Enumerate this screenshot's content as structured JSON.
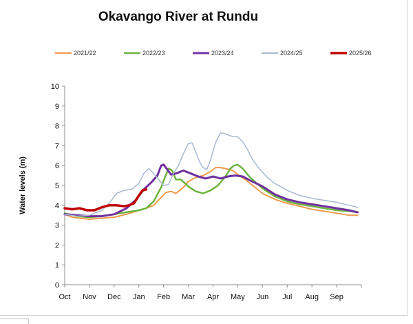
{
  "chart_data": {
    "type": "line",
    "title": "Okavango River at Rundu",
    "xlabel": "",
    "ylabel": "Water levels (m)",
    "ylim": [
      0,
      10
    ],
    "xlim": [
      0,
      12
    ],
    "yticks": [
      0,
      1,
      2,
      3,
      4,
      5,
      6,
      7,
      8,
      9,
      10
    ],
    "x_tick_labels": [
      "Oct",
      "Nov",
      "Dec",
      "Jan",
      "Feb",
      "Mar",
      "Apr",
      "May",
      "Jun",
      "Jul",
      "Aug",
      "Sep"
    ],
    "x_unit": "months since 1 October (tick at start of each month)",
    "grid": false,
    "legend_position": "top",
    "series": [
      {
        "name": "2021/22",
        "color": "#ED9A4C",
        "width": 2,
        "x": [
          0,
          0.3,
          0.6,
          1,
          1.5,
          2,
          2.5,
          3,
          3.3,
          3.6,
          3.9,
          4.1,
          4.3,
          4.5,
          4.8,
          5,
          5.3,
          5.6,
          5.9,
          6.1,
          6.3,
          6.5,
          6.8,
          7,
          7.3,
          7.6,
          8,
          8.5,
          9,
          9.5,
          10,
          10.5,
          11,
          11.5,
          11.85
        ],
        "y": [
          3.55,
          3.4,
          3.35,
          3.3,
          3.35,
          3.4,
          3.55,
          3.75,
          3.85,
          4.0,
          4.4,
          4.65,
          4.7,
          4.6,
          4.9,
          5.2,
          5.4,
          5.5,
          5.7,
          5.9,
          5.9,
          5.85,
          5.75,
          5.55,
          5.3,
          5.0,
          4.6,
          4.3,
          4.1,
          3.95,
          3.8,
          3.7,
          3.6,
          3.5,
          3.5
        ]
      },
      {
        "name": "2022/23",
        "color": "#6DB33F",
        "width": 2.5,
        "x": [
          0,
          0.5,
          1,
          1.5,
          2,
          2.5,
          3,
          3.3,
          3.6,
          3.9,
          4.05,
          4.2,
          4.35,
          4.5,
          4.7,
          5,
          5.3,
          5.6,
          5.9,
          6.2,
          6.5,
          6.7,
          6.85,
          7,
          7.2,
          7.5,
          8,
          8.5,
          9,
          9.5,
          10,
          10.5,
          11,
          11.5,
          11.85
        ],
        "y": [
          3.6,
          3.45,
          3.4,
          3.45,
          3.55,
          3.65,
          3.75,
          3.85,
          4.2,
          4.9,
          5.4,
          5.85,
          5.75,
          5.3,
          5.3,
          4.95,
          4.7,
          4.6,
          4.75,
          5.0,
          5.45,
          5.85,
          6.0,
          6.05,
          5.85,
          5.4,
          4.85,
          4.45,
          4.2,
          4.05,
          3.95,
          3.85,
          3.75,
          3.7,
          3.65
        ]
      },
      {
        "name": "2023/24",
        "color": "#7030A0",
        "width": 3,
        "x": [
          0,
          0.5,
          1,
          1.5,
          2,
          2.5,
          2.9,
          3.2,
          3.5,
          3.75,
          3.9,
          4.0,
          4.15,
          4.3,
          4.5,
          4.8,
          5.1,
          5.4,
          5.7,
          6.0,
          6.3,
          6.6,
          6.9,
          7.2,
          7.5,
          8,
          8.5,
          9,
          9.5,
          10,
          10.5,
          11,
          11.5,
          11.85
        ],
        "y": [
          3.55,
          3.5,
          3.45,
          3.45,
          3.55,
          3.85,
          4.3,
          4.8,
          5.15,
          5.5,
          6.0,
          6.05,
          5.8,
          5.55,
          5.6,
          5.75,
          5.6,
          5.45,
          5.35,
          5.45,
          5.35,
          5.45,
          5.5,
          5.45,
          5.25,
          4.95,
          4.55,
          4.3,
          4.15,
          4.05,
          3.95,
          3.85,
          3.75,
          3.65
        ]
      },
      {
        "name": "2024/25",
        "color": "#A9B8D0",
        "width": 1.5,
        "x": [
          0,
          0.5,
          1,
          1.5,
          1.8,
          2.1,
          2.4,
          2.7,
          3.0,
          3.2,
          3.4,
          3.6,
          3.8,
          4.0,
          4.2,
          4.4,
          4.6,
          4.8,
          5.0,
          5.15,
          5.3,
          5.45,
          5.6,
          5.75,
          5.9,
          6.1,
          6.3,
          6.5,
          6.7,
          6.85,
          7.0,
          7.2,
          7.4,
          7.6,
          7.9,
          8.2,
          8.5,
          9,
          9.5,
          10,
          10.5,
          11,
          11.5,
          11.85
        ],
        "y": [
          3.55,
          3.45,
          3.5,
          3.75,
          4.1,
          4.6,
          4.75,
          4.8,
          5.1,
          5.6,
          5.85,
          5.6,
          5.3,
          5.0,
          5.05,
          5.6,
          6.0,
          6.6,
          7.1,
          7.15,
          6.7,
          6.2,
          5.9,
          5.8,
          6.3,
          7.15,
          7.65,
          7.6,
          7.5,
          7.45,
          7.45,
          7.2,
          6.8,
          6.3,
          5.8,
          5.4,
          5.1,
          4.75,
          4.5,
          4.35,
          4.25,
          4.15,
          4.0,
          3.9
        ]
      },
      {
        "name": "2025/26",
        "color": "#C00000",
        "width": 3.5,
        "x": [
          0,
          0.3,
          0.6,
          0.9,
          1.2,
          1.5,
          1.8,
          2.1,
          2.4,
          2.6,
          2.8,
          3.0,
          3.15,
          3.3
        ],
        "y": [
          3.85,
          3.8,
          3.85,
          3.75,
          3.75,
          3.9,
          4.0,
          4.0,
          3.95,
          4.0,
          4.1,
          4.5,
          4.75,
          4.8
        ]
      }
    ]
  }
}
